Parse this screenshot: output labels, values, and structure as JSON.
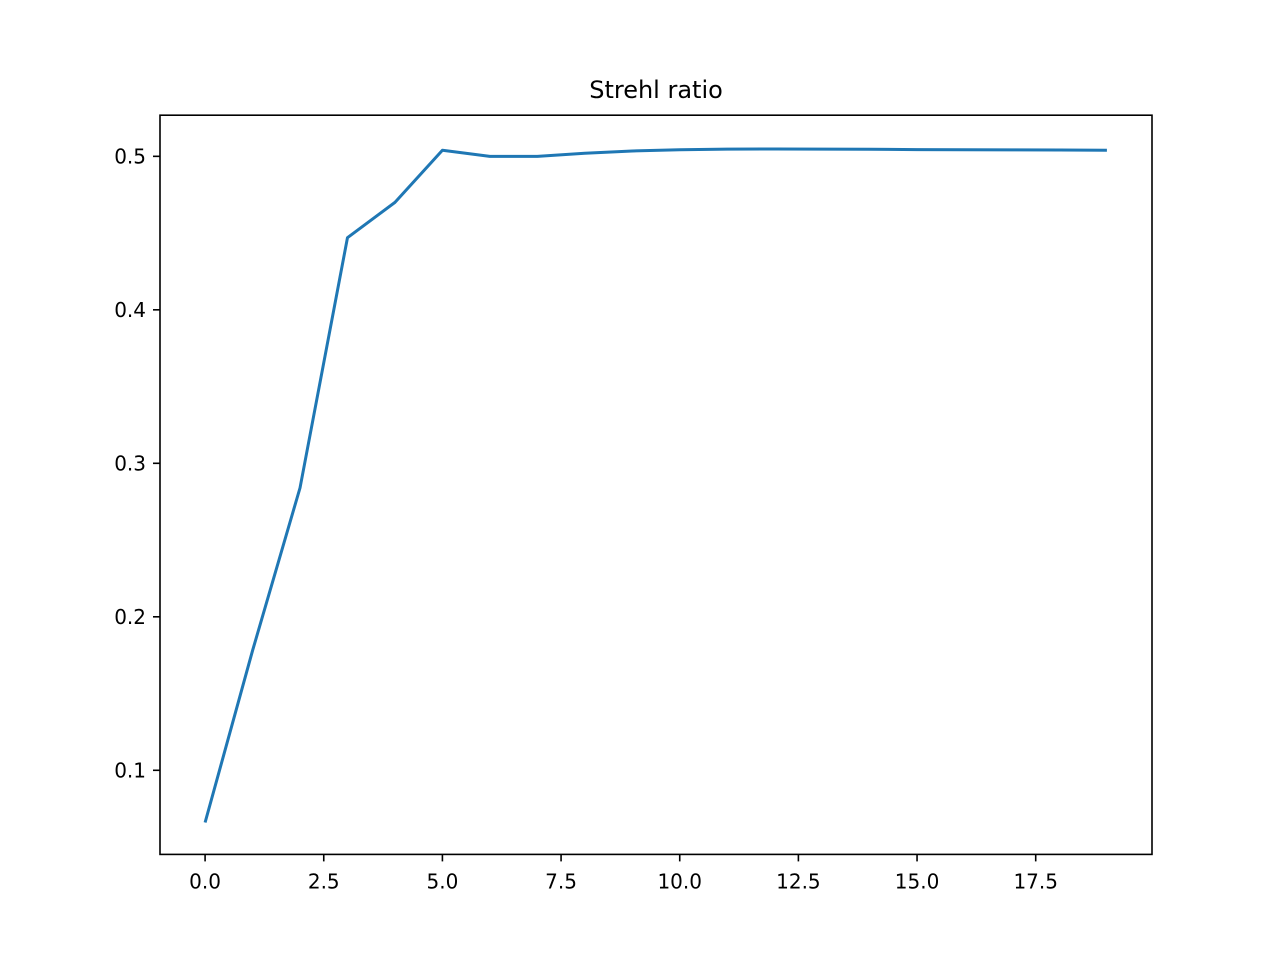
{
  "chart_data": {
    "type": "line",
    "title": "Strehl ratio",
    "xlabel": "",
    "ylabel": "",
    "xlim": [
      -0.95,
      19.95
    ],
    "ylim": [
      0.0452,
      0.5268
    ],
    "grid": false,
    "x_ticks": [
      0.0,
      2.5,
      5.0,
      7.5,
      10.0,
      12.5,
      15.0,
      17.5
    ],
    "x_tick_labels": [
      "0.0",
      "2.5",
      "5.0",
      "7.5",
      "10.0",
      "12.5",
      "15.0",
      "17.5"
    ],
    "y_ticks": [
      0.1,
      0.2,
      0.3,
      0.4,
      0.5
    ],
    "y_tick_labels": [
      "0.1",
      "0.2",
      "0.3",
      "0.4",
      "0.5"
    ],
    "series": [
      {
        "color": "#1f77b4",
        "x": [
          0,
          1,
          2,
          3,
          4,
          5,
          6,
          7,
          8,
          9,
          10,
          11,
          12,
          13,
          14,
          15,
          16,
          17,
          18,
          19
        ],
        "values": [
          0.066,
          0.178,
          0.284,
          0.447,
          0.47,
          0.504,
          0.5,
          0.5,
          0.502,
          0.5035,
          0.5043,
          0.5047,
          0.5048,
          0.5047,
          0.5046,
          0.5044,
          0.5043,
          0.5042,
          0.5041,
          0.504
        ]
      }
    ]
  }
}
